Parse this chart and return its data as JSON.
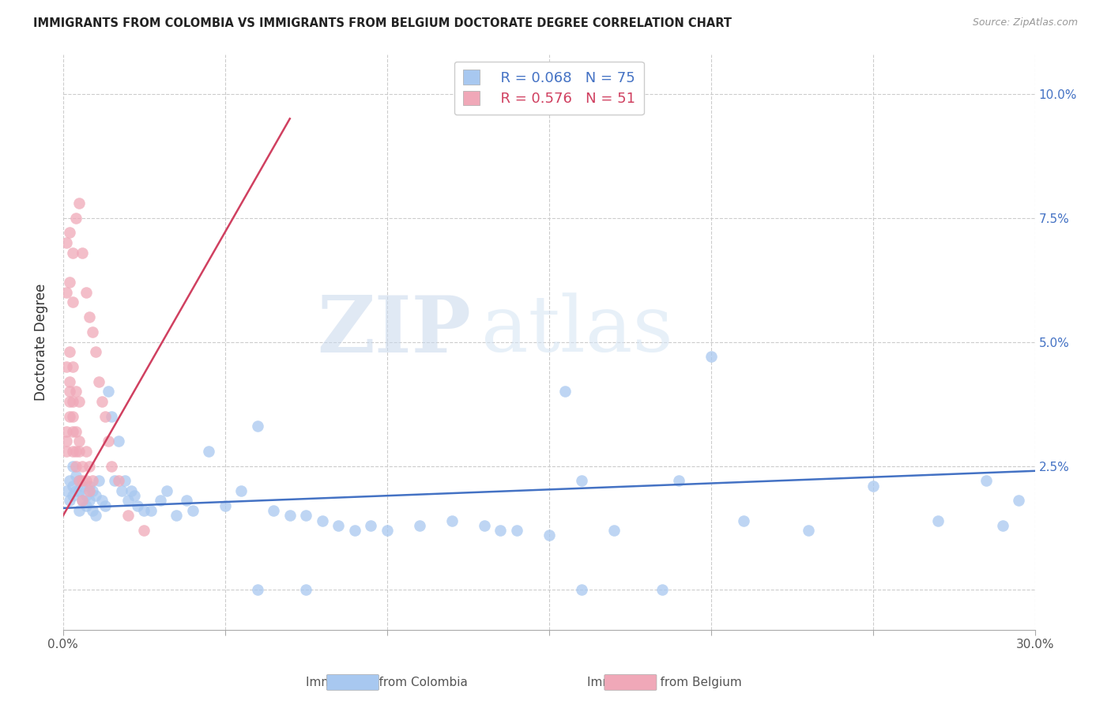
{
  "title": "IMMIGRANTS FROM COLOMBIA VS IMMIGRANTS FROM BELGIUM DOCTORATE DEGREE CORRELATION CHART",
  "source": "Source: ZipAtlas.com",
  "ylabel": "Doctorate Degree",
  "xlabel_colombia": "Immigrants from Colombia",
  "xlabel_belgium": "Immigrants from Belgium",
  "xlim": [
    0.0,
    0.3
  ],
  "ylim": [
    -0.008,
    0.108
  ],
  "xticks": [
    0.0,
    0.05,
    0.1,
    0.15,
    0.2,
    0.25,
    0.3
  ],
  "xticklabels_show": [
    "0.0%",
    "30.0%"
  ],
  "yticks": [
    0.0,
    0.025,
    0.05,
    0.075,
    0.1
  ],
  "yticklabels": [
    "",
    "2.5%",
    "5.0%",
    "7.5%",
    "10.0%"
  ],
  "legend_colombia_R": "0.068",
  "legend_colombia_N": "75",
  "legend_belgium_R": "0.576",
  "legend_belgium_N": "51",
  "colombia_color": "#A8C8F0",
  "belgium_color": "#F0A8B8",
  "colombia_line_color": "#4472C4",
  "belgium_line_color": "#D04060",
  "watermark_zip": "ZIP",
  "watermark_atlas": "atlas",
  "colombia_x": [
    0.001,
    0.002,
    0.002,
    0.003,
    0.003,
    0.003,
    0.004,
    0.004,
    0.005,
    0.005,
    0.005,
    0.006,
    0.006,
    0.007,
    0.007,
    0.008,
    0.008,
    0.009,
    0.009,
    0.01,
    0.01,
    0.011,
    0.012,
    0.013,
    0.014,
    0.015,
    0.016,
    0.017,
    0.018,
    0.019,
    0.02,
    0.021,
    0.022,
    0.023,
    0.025,
    0.027,
    0.03,
    0.032,
    0.035,
    0.038,
    0.04,
    0.045,
    0.05,
    0.055,
    0.06,
    0.065,
    0.07,
    0.075,
    0.08,
    0.085,
    0.09,
    0.095,
    0.1,
    0.11,
    0.12,
    0.13,
    0.14,
    0.15,
    0.16,
    0.17,
    0.19,
    0.21,
    0.23,
    0.25,
    0.27,
    0.285,
    0.295,
    0.135,
    0.06,
    0.075,
    0.16,
    0.185,
    0.2,
    0.29,
    0.155
  ],
  "colombia_y": [
    0.02,
    0.022,
    0.018,
    0.025,
    0.019,
    0.021,
    0.023,
    0.02,
    0.022,
    0.016,
    0.02,
    0.021,
    0.018,
    0.019,
    0.017,
    0.021,
    0.018,
    0.02,
    0.016,
    0.019,
    0.015,
    0.022,
    0.018,
    0.017,
    0.04,
    0.035,
    0.022,
    0.03,
    0.02,
    0.022,
    0.018,
    0.02,
    0.019,
    0.017,
    0.016,
    0.016,
    0.018,
    0.02,
    0.015,
    0.018,
    0.016,
    0.028,
    0.017,
    0.02,
    0.033,
    0.016,
    0.015,
    0.015,
    0.014,
    0.013,
    0.012,
    0.013,
    0.012,
    0.013,
    0.014,
    0.013,
    0.012,
    0.011,
    0.022,
    0.012,
    0.022,
    0.014,
    0.012,
    0.021,
    0.014,
    0.022,
    0.018,
    0.012,
    0.0,
    0.0,
    0.0,
    0.0,
    0.047,
    0.013,
    0.04
  ],
  "belgium_x": [
    0.001,
    0.001,
    0.001,
    0.002,
    0.002,
    0.002,
    0.002,
    0.003,
    0.003,
    0.003,
    0.003,
    0.004,
    0.004,
    0.004,
    0.005,
    0.005,
    0.005,
    0.006,
    0.006,
    0.006,
    0.007,
    0.007,
    0.008,
    0.008,
    0.009,
    0.001,
    0.002,
    0.003,
    0.004,
    0.005,
    0.001,
    0.002,
    0.003,
    0.001,
    0.002,
    0.003,
    0.004,
    0.005,
    0.006,
    0.007,
    0.008,
    0.009,
    0.01,
    0.011,
    0.012,
    0.013,
    0.014,
    0.015,
    0.017,
    0.02,
    0.025
  ],
  "belgium_y": [
    0.03,
    0.032,
    0.028,
    0.038,
    0.035,
    0.04,
    0.042,
    0.038,
    0.035,
    0.032,
    0.028,
    0.032,
    0.028,
    0.025,
    0.03,
    0.028,
    0.022,
    0.025,
    0.022,
    0.018,
    0.028,
    0.022,
    0.025,
    0.02,
    0.022,
    0.045,
    0.048,
    0.045,
    0.04,
    0.038,
    0.06,
    0.062,
    0.058,
    0.07,
    0.072,
    0.068,
    0.075,
    0.078,
    0.068,
    0.06,
    0.055,
    0.052,
    0.048,
    0.042,
    0.038,
    0.035,
    0.03,
    0.025,
    0.022,
    0.015,
    0.012
  ],
  "belgium_line_x": [
    0.0,
    0.07
  ],
  "belgium_line_y": [
    0.015,
    0.095
  ]
}
